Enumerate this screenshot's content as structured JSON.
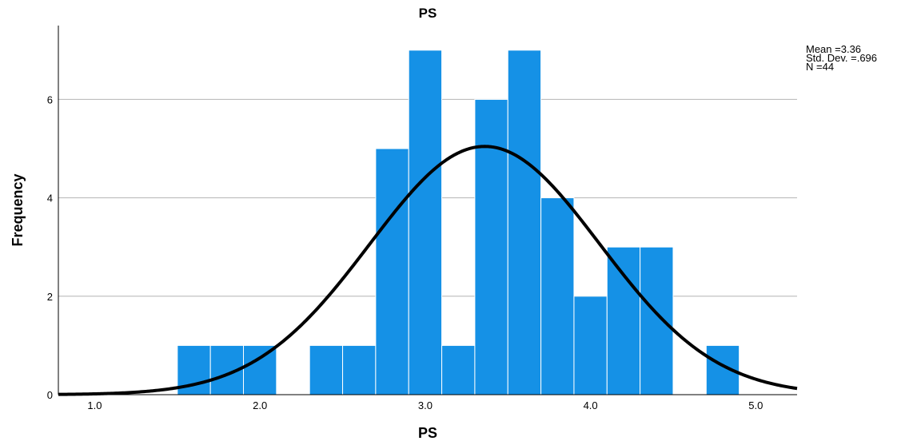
{
  "chart_data": {
    "type": "bar",
    "title": "PS",
    "xlabel": "PS",
    "ylabel": "Frequency",
    "xlim": [
      0.78,
      5.25
    ],
    "ylim": [
      0,
      7.5
    ],
    "xticks": [
      "1.0",
      "2.0",
      "3.0",
      "4.0",
      "5.0"
    ],
    "yticks": [
      "0",
      "2",
      "4",
      "6"
    ],
    "grid": "horizontal",
    "bin_width": 0.2,
    "bins": [
      {
        "x0": 1.5,
        "x1": 1.7,
        "count": 1
      },
      {
        "x0": 1.7,
        "x1": 1.9,
        "count": 1
      },
      {
        "x0": 1.9,
        "x1": 2.1,
        "count": 1
      },
      {
        "x0": 2.3,
        "x1": 2.5,
        "count": 1
      },
      {
        "x0": 2.5,
        "x1": 2.7,
        "count": 1
      },
      {
        "x0": 2.7,
        "x1": 2.9,
        "count": 5
      },
      {
        "x0": 2.9,
        "x1": 3.1,
        "count": 7
      },
      {
        "x0": 3.1,
        "x1": 3.3,
        "count": 1
      },
      {
        "x0": 3.3,
        "x1": 3.5,
        "count": 6
      },
      {
        "x0": 3.5,
        "x1": 3.7,
        "count": 7
      },
      {
        "x0": 3.7,
        "x1": 3.9,
        "count": 4
      },
      {
        "x0": 3.9,
        "x1": 4.1,
        "count": 2
      },
      {
        "x0": 4.1,
        "x1": 4.3,
        "count": 3
      },
      {
        "x0": 4.3,
        "x1": 4.5,
        "count": 3
      },
      {
        "x0": 4.7,
        "x1": 4.9,
        "count": 1
      }
    ],
    "normal_curve": {
      "mean": 3.36,
      "std": 0.696,
      "n": 44
    },
    "bar_color": "#1591e6",
    "curve_color": "#000000",
    "stats": {
      "mean": "Mean =3.36",
      "std": "Std. Dev. =.696",
      "n": "N =44"
    }
  }
}
